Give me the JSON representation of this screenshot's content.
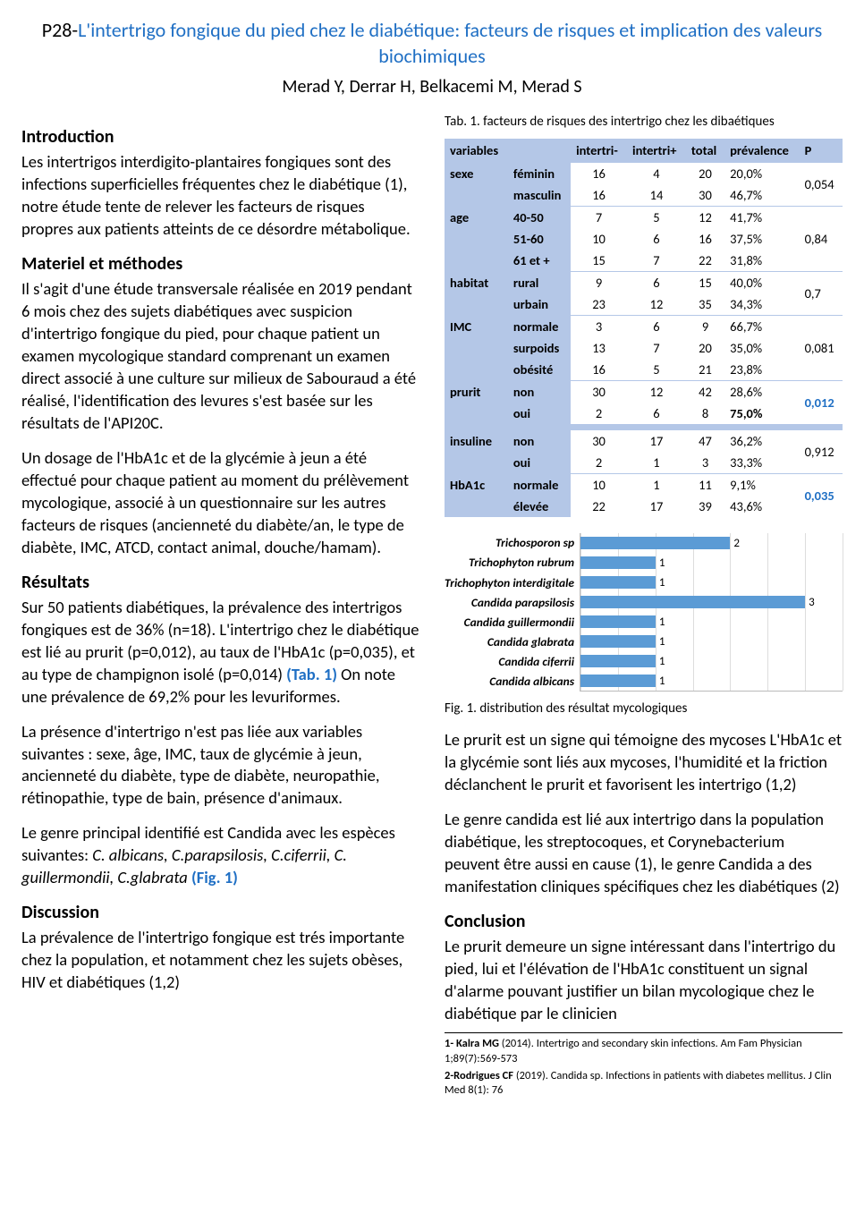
{
  "title_prefix": "P28-",
  "title_main": "L'intertrigo fongique du pied chez le diabétique: facteurs de risques et implication des valeurs biochimiques",
  "authors": "Merad Y, Derrar H, Belkacemi M, Merad S",
  "sections": {
    "intro_h": "Introduction",
    "intro_p": "Les intertrigos interdigito-plantaires fongiques sont des infections superficielles fréquentes chez le diabétique (1), notre étude tente de relever les facteurs de risques propres aux patients atteints de ce désordre métabolique.",
    "mat_h": "Materiel et méthodes",
    "mat_p1": "Il s'agit d'une étude transversale réalisée en 2019 pendant 6 mois chez des sujets diabétiques avec suspicion d'intertrigo fongique du pied, pour chaque patient un examen mycologique standard comprenant un examen direct associé à une culture sur milieux de Sabouraud a été réalisé, l'identification des levures s'est basée sur les résultats de l'API20C.",
    "mat_p2": "Un dosage de l'HbA1c et de la glycémie à jeun a été effectué pour chaque patient au moment du prélèvement mycologique, associé à un questionnaire sur les autres facteurs de risques (ancienneté du diabète/an, le type de diabète, IMC, ATCD, contact animal, douche/hamam).",
    "res_h": "Résultats",
    "res_p1a": "Sur 50 patients diabétiques, la prévalence des intertrigos fongiques est de 36% (n=18). L'intertrigo chez le diabétique est lié au prurit (p=0,012), au taux de l'HbA1c (p=0,035), et au type de champignon isolé (p=0,014) ",
    "res_p1_ref": "(Tab. 1)",
    "res_p1b": " On note une prévalence de 69,2% pour les levuriformes.",
    "res_p2": "La présence d'intertrigo n'est pas liée aux variables suivantes : sexe, âge, IMC, taux de glycémie à jeun, ancienneté du diabète, type de diabète, neuropathie, rétinopathie, type de bain, présence d'animaux.",
    "res_p3a": "Le genre principal identifié est Candida avec les espèces suivantes: ",
    "res_p3i": "C. albicans, C.parapsilosis, C.ciferrii, C. guillermondii, C.glabrata ",
    "res_p3_ref": "(Fig. 1)",
    "disc_h": "Discussion",
    "disc_p1": "La prévalence de l'intertrigo fongique est trés importante chez la population, et notamment chez les sujets obèses, HIV et diabétiques (1,2)",
    "disc_p2": "Le prurit est un signe qui témoigne des mycoses L'HbA1c et la glycémie sont liés aux mycoses, l'humidité et la friction déclanchent le prurit et favorisent les intertrigo (1,2)",
    "disc_p3": "Le genre candida est lié aux intertrigo dans la population diabétique, les streptocoques, et Corynebacterium  peuvent être aussi en cause (1), le genre Candida a des manifestation cliniques spécifiques chez les diabétiques (2)",
    "concl_h": "Conclusion",
    "concl_p": "Le prurit demeure un signe intéressant dans l'intertrigo du pied, lui et l'élévation de l'HbA1c constituent un signal d'alarme pouvant justifier un bilan mycologique chez le diabétique par le clinicien"
  },
  "table": {
    "caption": "Tab. 1. facteurs de risques des intertrigo chez les dibaétiques",
    "headers": [
      "variables",
      "",
      "intertri-",
      "intertri+",
      "total",
      "prévalence",
      "P"
    ],
    "header_bg": "#b4c7e7",
    "groups": [
      {
        "var": "sexe",
        "p": "0,054",
        "rows": [
          {
            "sub": "féminin",
            "neg": "16",
            "pos": "4",
            "tot": "20",
            "prev": "20,0%"
          },
          {
            "sub": "masculin",
            "neg": "16",
            "pos": "14",
            "tot": "30",
            "prev": "46,7%"
          }
        ]
      },
      {
        "var": "age",
        "p": "0,84",
        "rows": [
          {
            "sub": "40-50",
            "neg": "7",
            "pos": "5",
            "tot": "12",
            "prev": "41,7%"
          },
          {
            "sub": "51-60",
            "neg": "10",
            "pos": "6",
            "tot": "16",
            "prev": "37,5%"
          },
          {
            "sub": "61 et +",
            "neg": "15",
            "pos": "7",
            "tot": "22",
            "prev": "31,8%"
          }
        ]
      },
      {
        "var": "habitat",
        "p": "0,7",
        "rows": [
          {
            "sub": "rural",
            "neg": "9",
            "pos": "6",
            "tot": "15",
            "prev": "40,0%"
          },
          {
            "sub": "urbain",
            "neg": "23",
            "pos": "12",
            "tot": "35",
            "prev": "34,3%"
          }
        ]
      },
      {
        "var": "IMC",
        "p": "0,081",
        "rows": [
          {
            "sub": "normale",
            "neg": "3",
            "pos": "6",
            "tot": "9",
            "prev": "66,7%"
          },
          {
            "sub": "surpoids",
            "neg": "13",
            "pos": "7",
            "tot": "20",
            "prev": "35,0%"
          },
          {
            "sub": "obésité",
            "neg": "16",
            "pos": "5",
            "tot": "21",
            "prev": "23,8%"
          }
        ]
      },
      {
        "var": "prurit",
        "p": "0,012",
        "p_sig": true,
        "rows": [
          {
            "sub": "non",
            "neg": "30",
            "pos": "12",
            "tot": "42",
            "prev": "28,6%"
          },
          {
            "sub": "oui",
            "neg": "2",
            "pos": "6",
            "tot": "8",
            "prev": "75,0%",
            "prev_bold": true
          }
        ]
      },
      {
        "var": "insuline",
        "p": "0,912",
        "spacer": true,
        "rows": [
          {
            "sub": "non",
            "neg": "30",
            "pos": "17",
            "tot": "47",
            "prev": "36,2%"
          },
          {
            "sub": "oui",
            "neg": "2",
            "pos": "1",
            "tot": "3",
            "prev": "33,3%"
          }
        ]
      },
      {
        "var": "HbA1c",
        "p": "0,035",
        "p_sig": true,
        "rows": [
          {
            "sub": "normale",
            "neg": "10",
            "pos": "1",
            "tot": "11",
            "prev": "9,1%"
          },
          {
            "sub": "élevée",
            "neg": "22",
            "pos": "17",
            "tot": "39",
            "prev": "43,6%"
          }
        ]
      }
    ]
  },
  "chart": {
    "caption": "Fig. 1. distribution des résultat mycologiques",
    "type": "bar-horizontal",
    "xlim": [
      0,
      3.5
    ],
    "grid_positions_pct": [
      0,
      14.3,
      28.6,
      42.9,
      57.1,
      71.4,
      85.7,
      100
    ],
    "bar_color": "#5b9bd5",
    "grid_color": "#dddddd",
    "axis_color": "#bbbbbb",
    "label_font_style": "italic bold",
    "items": [
      {
        "label": "Trichosporon sp",
        "value": 2,
        "width_pct": 57.1
      },
      {
        "label": "Trichophyton rubrum",
        "value": 1,
        "width_pct": 28.6
      },
      {
        "label": "Trichophyton interdigitale",
        "value": 1,
        "width_pct": 28.6
      },
      {
        "label": "Candida parapsilosis",
        "value": 3,
        "width_pct": 85.7
      },
      {
        "label": "Candida guillermondii",
        "value": 1,
        "width_pct": 28.6
      },
      {
        "label": "Candida glabrata",
        "value": 1,
        "width_pct": 28.6
      },
      {
        "label": "Candida ciferrii",
        "value": 1,
        "width_pct": 28.6
      },
      {
        "label": "Candida albicans",
        "value": 1,
        "width_pct": 28.6
      }
    ]
  },
  "refs": {
    "r1_b": "1- Kalra MG",
    "r1": "  (2014). Intertrigo and secondary skin infections. Am Fam Physician 1;89(7):569-573",
    "r2_b": "2-Rodrigues CF",
    "r2": " (2019). Candida sp. Infections in patients with diabetes mellitus. J Clin Med 8(1): 76"
  }
}
